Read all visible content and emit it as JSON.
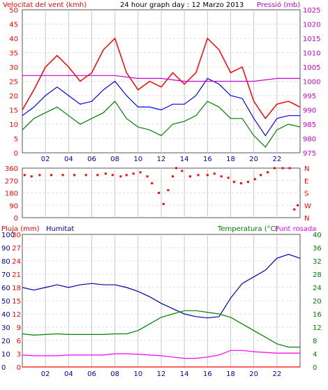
{
  "chart_data": [
    {
      "type": "line",
      "title": "24 hour graph day : 12 Marzo 2013",
      "left_label": "Velocitat del vent (kmh)",
      "right_label": "Pressió (mb)",
      "y_left_ticks": [
        "0",
        "5",
        "10",
        "15",
        "20",
        "25",
        "30",
        "35",
        "40",
        "45",
        "50"
      ],
      "y_right_ticks": [
        "975",
        "980",
        "985",
        "990",
        "995",
        "1000",
        "1005",
        "1010",
        "1015",
        "1020",
        "1025"
      ],
      "ylim_left": [
        0,
        50
      ],
      "ylim_right": [
        975,
        1025
      ],
      "x_ticks": [
        "02",
        "04",
        "06",
        "08",
        "10",
        "12",
        "14",
        "16",
        "18",
        "20",
        "22"
      ],
      "colors": {
        "gust": "#ff0000",
        "avg": "#008000",
        "avg_smooth": "#0000ff",
        "pressure": "#cc00cc"
      },
      "series": [
        {
          "key": "gust",
          "hours": [
            0,
            1,
            2,
            3,
            4,
            5,
            6,
            7,
            8,
            9,
            10,
            11,
            12,
            13,
            14,
            15,
            16,
            17,
            18,
            19,
            20,
            21,
            22,
            23,
            24
          ],
          "values": [
            15,
            22,
            30,
            34,
            30,
            25,
            28,
            36,
            40,
            28,
            22,
            25,
            23,
            28,
            24,
            28,
            40,
            36,
            28,
            30,
            18,
            12,
            17,
            18,
            16
          ]
        },
        {
          "key": "avg_smooth",
          "hours": [
            0,
            1,
            2,
            3,
            4,
            5,
            6,
            7,
            8,
            9,
            10,
            11,
            12,
            13,
            14,
            15,
            16,
            17,
            18,
            19,
            20,
            21,
            22,
            23,
            24
          ],
          "values": [
            13,
            16,
            20,
            23,
            20,
            17,
            18,
            22,
            25,
            20,
            16,
            16,
            15,
            17,
            17,
            20,
            26,
            24,
            20,
            19,
            12,
            6,
            12,
            13,
            13
          ]
        },
        {
          "key": "avg",
          "hours": [
            0,
            1,
            2,
            3,
            4,
            5,
            6,
            7,
            8,
            9,
            10,
            11,
            12,
            13,
            14,
            15,
            16,
            17,
            18,
            19,
            20,
            21,
            22,
            23,
            24
          ],
          "values": [
            8,
            12,
            14,
            16,
            13,
            10,
            12,
            14,
            18,
            12,
            9,
            8,
            6,
            10,
            11,
            13,
            18,
            16,
            12,
            12,
            6,
            2,
            8,
            10,
            9
          ]
        },
        {
          "key": "pressure",
          "hours": [
            0,
            2,
            4,
            6,
            8,
            10,
            12,
            14,
            16,
            18,
            20,
            22,
            24
          ],
          "values": [
            1002,
            1002,
            1002,
            1002,
            1002,
            1001,
            1001,
            1000,
            1000,
            1000,
            1000,
            1001,
            1001
          ]
        }
      ]
    },
    {
      "type": "scatter",
      "y_left_ticks": [
        "0",
        "90",
        "180",
        "270",
        "360"
      ],
      "y_right_ticks": [
        "N",
        "E",
        "S",
        "W",
        "N"
      ],
      "ylim": [
        0,
        360
      ],
      "color": "#ff0000",
      "points": [
        [
          0.2,
          310
        ],
        [
          0.8,
          300
        ],
        [
          1.5,
          310
        ],
        [
          2.5,
          310
        ],
        [
          3.5,
          310
        ],
        [
          4.5,
          310
        ],
        [
          5.5,
          310
        ],
        [
          6.5,
          310
        ],
        [
          7.2,
          320
        ],
        [
          7.8,
          310
        ],
        [
          8.5,
          300
        ],
        [
          9.0,
          310
        ],
        [
          9.6,
          320
        ],
        [
          10.2,
          330
        ],
        [
          10.8,
          300
        ],
        [
          11.2,
          250
        ],
        [
          11.8,
          180
        ],
        [
          12.2,
          100
        ],
        [
          12.6,
          200
        ],
        [
          13.0,
          300
        ],
        [
          13.3,
          360
        ],
        [
          13.8,
          340
        ],
        [
          14.5,
          300
        ],
        [
          15.2,
          310
        ],
        [
          16.0,
          310
        ],
        [
          16.6,
          320
        ],
        [
          17.2,
          300
        ],
        [
          17.8,
          290
        ],
        [
          18.3,
          260
        ],
        [
          18.9,
          250
        ],
        [
          19.5,
          260
        ],
        [
          20.1,
          280
        ],
        [
          20.6,
          310
        ],
        [
          21.2,
          330
        ],
        [
          21.8,
          360
        ],
        [
          22.5,
          360
        ],
        [
          23.1,
          360
        ],
        [
          23.5,
          60
        ],
        [
          23.8,
          90
        ]
      ]
    },
    {
      "type": "line",
      "left_label": "Pluja (mm)",
      "left_label2": "Humitat",
      "right_label": "Temperatura (°C)",
      "right_label2": "Punt rosada",
      "y_left_ticks": [
        "0",
        "3",
        "6",
        "9",
        "12",
        "15",
        "18",
        "21",
        "24",
        "27",
        "30"
      ],
      "y_left_ticks2": [
        "0",
        "10",
        "20",
        "30",
        "40",
        "50",
        "60",
        "70",
        "80",
        "90",
        "100"
      ],
      "y_right_ticks": [
        "0",
        "4",
        "8",
        "12",
        "16",
        "20",
        "24",
        "28",
        "32",
        "36",
        "40"
      ],
      "ylim_left": [
        0,
        100
      ],
      "ylim_right": [
        0,
        40
      ],
      "x_ticks": [
        "02",
        "04",
        "06",
        "08",
        "10",
        "12",
        "14",
        "16",
        "18",
        "20",
        "22"
      ],
      "colors": {
        "humidity": "#0000aa",
        "temperature": "#008000",
        "dewpoint": "#ff00ff",
        "rain": "#ff0000"
      },
      "series": [
        {
          "key": "humidity",
          "hours": [
            0,
            1,
            2,
            3,
            4,
            5,
            6,
            7,
            8,
            9,
            10,
            11,
            12,
            13,
            14,
            15,
            16,
            17,
            18,
            19,
            20,
            21,
            22,
            23,
            24
          ],
          "values": [
            60,
            58,
            60,
            62,
            60,
            62,
            63,
            62,
            62,
            60,
            57,
            53,
            48,
            44,
            40,
            38,
            37,
            38,
            52,
            63,
            68,
            73,
            82,
            85,
            82
          ]
        },
        {
          "key": "temperature",
          "hours": [
            0,
            1,
            2,
            3,
            4,
            5,
            6,
            7,
            8,
            9,
            10,
            11,
            12,
            13,
            14,
            15,
            16,
            17,
            18,
            19,
            20,
            21,
            22,
            23,
            24
          ],
          "values": [
            10,
            9.6,
            9.8,
            10,
            9.8,
            9.8,
            9.8,
            9.8,
            10,
            10,
            11,
            13,
            15,
            16,
            17,
            17,
            16.5,
            16,
            15,
            13,
            11,
            9,
            7,
            6,
            6
          ]
        },
        {
          "key": "dewpoint",
          "hours": [
            0,
            1,
            2,
            3,
            4,
            5,
            6,
            7,
            8,
            9,
            10,
            11,
            12,
            13,
            14,
            15,
            16,
            17,
            18,
            19,
            20,
            21,
            22,
            23,
            24
          ],
          "values": [
            3.6,
            3.4,
            3.4,
            3.4,
            3.6,
            3.6,
            3.6,
            3.6,
            4,
            4,
            3.8,
            3.6,
            3.4,
            3,
            2.6,
            2.6,
            3,
            3.6,
            5,
            5,
            4.6,
            4.4,
            4.2,
            4.2,
            4.2
          ]
        },
        {
          "key": "rain",
          "hours": [
            0,
            24
          ],
          "values": [
            0,
            0
          ]
        }
      ]
    }
  ]
}
